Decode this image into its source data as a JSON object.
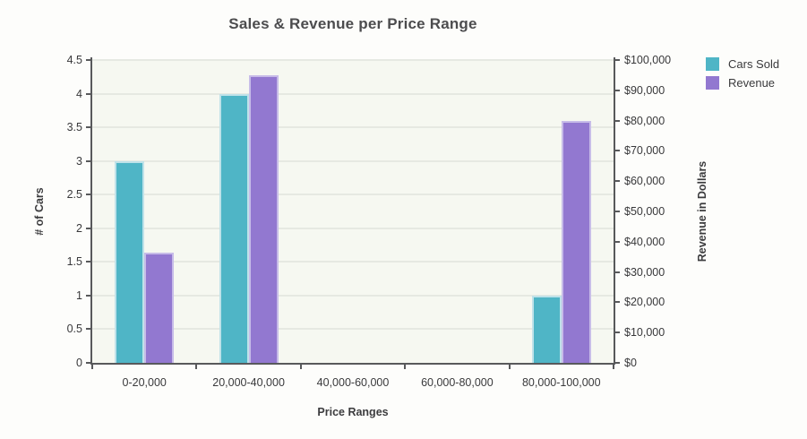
{
  "chart_data": {
    "type": "bar",
    "title": "Sales & Revenue per Price Range",
    "xlabel": "Price Ranges",
    "ylabel_left": "# of Cars",
    "ylabel_right": "Revenue in Dollars",
    "categories": [
      "0-20,000",
      "20,000-40,000",
      "40,000-60,000",
      "60,000-80,000",
      "80,000-100,000"
    ],
    "series": [
      {
        "name": "Cars Sold",
        "axis": "left",
        "color": "#4fb5c6",
        "border_color": "#bfe2e9",
        "values": [
          3,
          4,
          0,
          0,
          1
        ]
      },
      {
        "name": "Revenue",
        "axis": "right",
        "color": "#9278d0",
        "border_color": "#c7bce8",
        "values": [
          36500,
          95000,
          0,
          0,
          80000
        ]
      }
    ],
    "left_axis": {
      "min": 0,
      "max": 4.5,
      "step": 0.5,
      "tick_labels": [
        "0",
        "0.5",
        "1",
        "1.5",
        "2",
        "2.5",
        "3",
        "3.5",
        "4",
        "4.5"
      ]
    },
    "right_axis": {
      "min": 0,
      "max": 100000,
      "step": 10000,
      "tick_labels": [
        "$0",
        "$10,000",
        "$20,000",
        "$30,000",
        "$40,000",
        "$50,000",
        "$60,000",
        "$70,000",
        "$80,000",
        "$90,000",
        "$100,000"
      ]
    },
    "legend_position": "top-right",
    "grid": true,
    "colors": {
      "plot_background": "#f6f8f1",
      "canvas_background": "#fdfdfb",
      "gridline": "#e6e9e2",
      "axis": "#58595b",
      "text": "#3a3a3c",
      "title_text": "#4c4c4e"
    }
  }
}
